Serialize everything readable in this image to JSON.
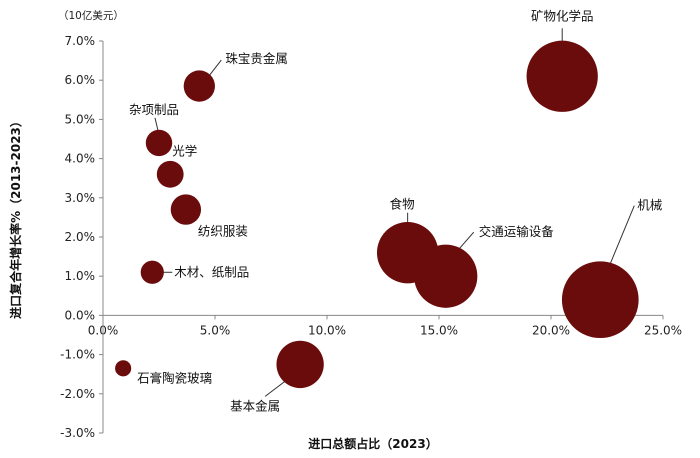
{
  "chart_data": {
    "type": "scatter",
    "subtype": "bubble",
    "unit_note": "（10亿美元）",
    "xlabel": "进口总额占比（2023）",
    "ylabel": "进口复合年增长率%（2013-2023）",
    "xlim": [
      0,
      25
    ],
    "ylim": [
      -3,
      7
    ],
    "x_ticks": [
      "0.0%",
      "5.0%",
      "10.0%",
      "15.0%",
      "20.0%",
      "25.0%"
    ],
    "y_ticks": [
      "7.0%",
      "6.0%",
      "5.0%",
      "4.0%",
      "3.0%",
      "2.0%",
      "1.0%",
      "0.0%",
      "-1.0%",
      "-2.0%",
      "-3.0%"
    ],
    "bubble_color": "#6b0c0c",
    "grid": false,
    "points": [
      {
        "label": "矿物化学品",
        "x": 20.5,
        "y": 6.1,
        "size": 1270
      },
      {
        "label": "珠宝贵金属",
        "x": 4.3,
        "y": 5.85,
        "size": 245
      },
      {
        "label": "杂项制品",
        "x": 2.5,
        "y": 4.4,
        "size": 175
      },
      {
        "label": "光学",
        "x": 3.0,
        "y": 3.6,
        "size": 180
      },
      {
        "label": "纺织服装",
        "x": 3.7,
        "y": 2.7,
        "size": 230
      },
      {
        "label": "木材、纸制品",
        "x": 2.2,
        "y": 1.1,
        "size": 135
      },
      {
        "label": "食物",
        "x": 13.6,
        "y": 1.6,
        "size": 940
      },
      {
        "label": "交通运输设备",
        "x": 15.3,
        "y": 1.0,
        "size": 1000
      },
      {
        "label": "机械",
        "x": 22.2,
        "y": 0.4,
        "size": 1470
      },
      {
        "label": "石膏陶瓷玻璃",
        "x": 0.9,
        "y": -1.35,
        "size": 65
      },
      {
        "label": "基本金属",
        "x": 8.8,
        "y": -1.25,
        "size": 560
      }
    ]
  }
}
